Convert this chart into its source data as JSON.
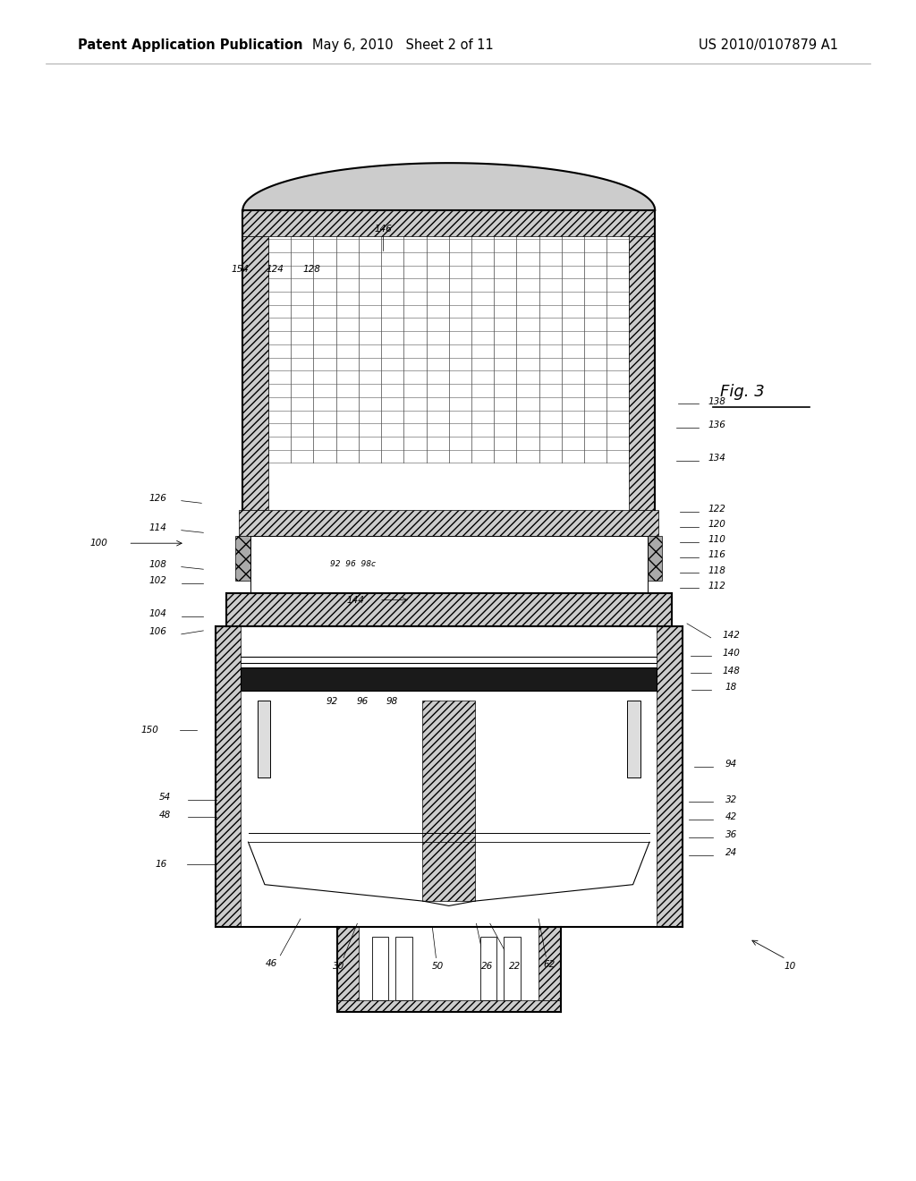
{
  "background_color": "#ffffff",
  "header_left": "Patent Application Publication",
  "header_center": "May 6, 2010   Sheet 2 of 11",
  "header_right": "US 2010/0107879 A1",
  "fig_label": "Fig. 3",
  "header_fontsize": 10.5,
  "fig_label_fontsize": 13
}
